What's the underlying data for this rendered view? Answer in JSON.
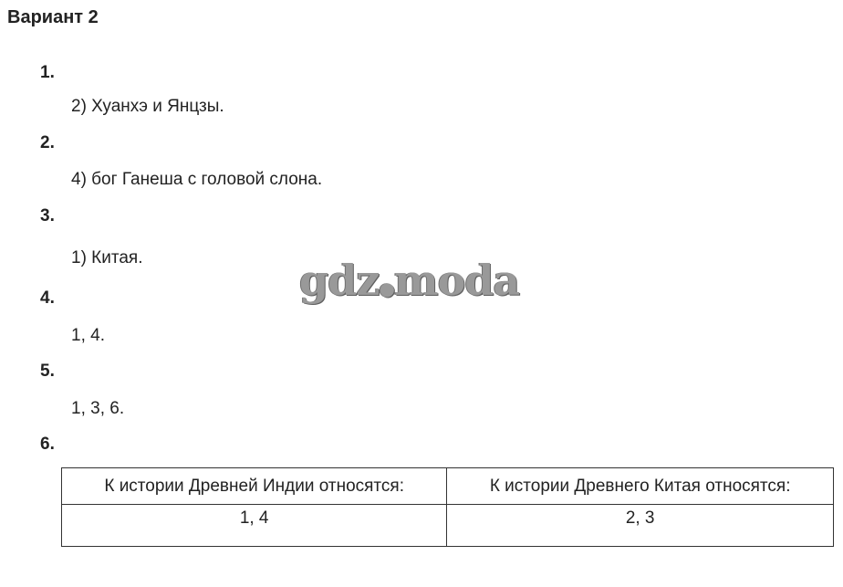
{
  "title": "Вариант 2",
  "watermark": "gdz.moda",
  "questions": [
    {
      "number": "1.",
      "answer": "2) Хуанхэ и Янцзы."
    },
    {
      "number": "2.",
      "answer": "4) бог Ганеша с головой слона."
    },
    {
      "number": "3.",
      "answer": "1) Китая."
    },
    {
      "number": "4.",
      "answer": "1, 4."
    },
    {
      "number": "5.",
      "answer": "1, 3, 6."
    },
    {
      "number": "6."
    }
  ],
  "table": {
    "headers": [
      "К истории Древней Индии относятся:",
      "К истории Древнего Китая относятся:"
    ],
    "values": [
      "1, 4",
      "2, 3"
    ]
  }
}
